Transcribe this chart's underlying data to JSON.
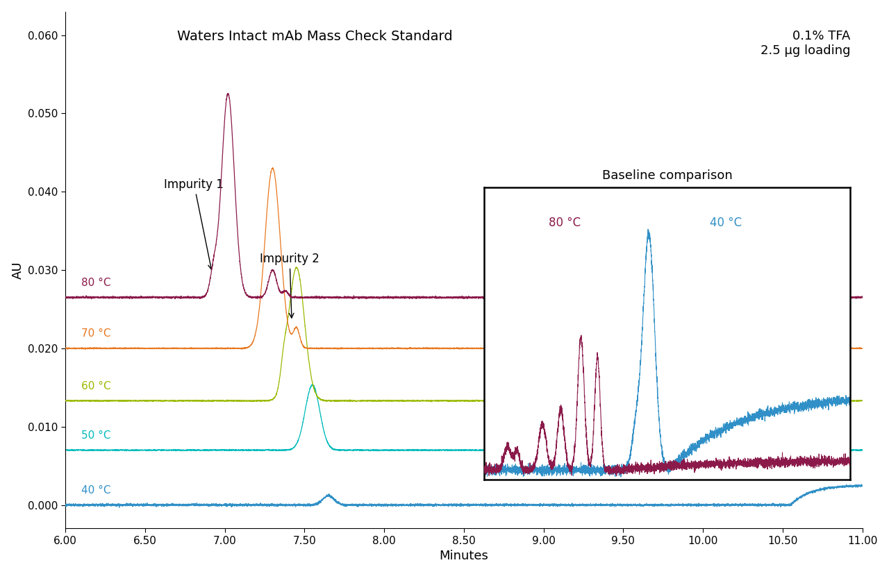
{
  "title_left": "Waters Intact mAb Mass Check Standard",
  "title_right": "0.1% TFA\n2.5 μg loading",
  "xlabel": "Minutes",
  "ylabel": "AU",
  "xlim": [
    6.0,
    11.0
  ],
  "ylim": [
    -0.003,
    0.063
  ],
  "yticks": [
    0.0,
    0.01,
    0.02,
    0.03,
    0.04,
    0.05,
    0.06
  ],
  "xticks": [
    6.0,
    6.5,
    7.0,
    7.5,
    8.0,
    8.5,
    9.0,
    9.5,
    10.0,
    10.5,
    11.0
  ],
  "colors": {
    "80C": "#8B1A4A",
    "70C": "#E87820",
    "60C": "#9ABA00",
    "50C": "#00BABA",
    "40C": "#3090C7"
  },
  "baselines": {
    "80C": 0.0265,
    "70C": 0.02,
    "60C": 0.0133,
    "50C": 0.007,
    "40C": 0.0
  },
  "baseline_comparison_title": "Baseline comparison",
  "inset_label_80C": "80 °C",
  "inset_label_40C": "40 °C",
  "temp_labels": {
    "80C": "80 °C",
    "70C": "70 °C",
    "60C": "60 °C",
    "50C": "50 °C",
    "40C": "40 °C"
  },
  "annotation_imp1": "Impurity 1",
  "annotation_imp2": "Impurity 2"
}
